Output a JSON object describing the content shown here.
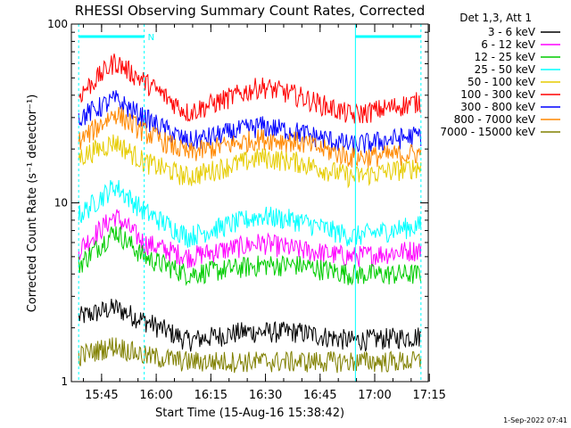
{
  "chart_data": {
    "type": "line",
    "title": "RHESSI Observing Summary Count Rates, Corrected",
    "xlabel": "Start Time (15-Aug-16 15:38:42)",
    "ylabel": "Corrected Count Rate (s⁻¹ detector⁻¹)",
    "ylog": true,
    "ylim": [
      1,
      100
    ],
    "y_tick_labels": [
      "1",
      "10",
      "100"
    ],
    "x_minutes_range": [
      -2,
      96
    ],
    "x_tick_labels": [
      "15:45",
      "16:00",
      "16:15",
      "16:30",
      "16:45",
      "17:00",
      "17:15"
    ],
    "x_tick_minutes": [
      6.3,
      21.3,
      36.3,
      51.3,
      66.3,
      81.3,
      96.3
    ],
    "legend_header": "Det 1,3, Att 1",
    "legend_position": "top-right, outside plot",
    "footer_date": "1-Sep-2022 07:41",
    "bar_flag": "N",
    "bars": [
      {
        "name": "night_left",
        "start_min": 0,
        "end_min": 18
      },
      {
        "name": "night_right",
        "start_min": 76,
        "end_min": 94
      }
    ],
    "series": [
      {
        "name": "3 - 6 keV",
        "color": "#000000",
        "points": [
          [
            0,
            2.3
          ],
          [
            10,
            2.6
          ],
          [
            18,
            2.2
          ],
          [
            30,
            1.7
          ],
          [
            45,
            1.9
          ],
          [
            60,
            1.9
          ],
          [
            75,
            1.7
          ],
          [
            94,
            1.8
          ]
        ]
      },
      {
        "name": "6 - 12 keV",
        "color": "#ff00ff",
        "points": [
          [
            0,
            5.5
          ],
          [
            10,
            8.5
          ],
          [
            18,
            6.0
          ],
          [
            30,
            5.0
          ],
          [
            50,
            6.0
          ],
          [
            60,
            5.5
          ],
          [
            75,
            5.0
          ],
          [
            94,
            5.5
          ]
        ]
      },
      {
        "name": "12 - 25 keV",
        "color": "#00cc00",
        "points": [
          [
            0,
            4.5
          ],
          [
            10,
            7.0
          ],
          [
            18,
            5.0
          ],
          [
            30,
            4.0
          ],
          [
            50,
            4.5
          ],
          [
            60,
            4.5
          ],
          [
            75,
            4.0
          ],
          [
            94,
            4.0
          ]
        ]
      },
      {
        "name": "25 - 50 keV",
        "color": "#00ffff",
        "points": [
          [
            0,
            8.5
          ],
          [
            10,
            12.5
          ],
          [
            18,
            9.0
          ],
          [
            30,
            6.5
          ],
          [
            50,
            8.5
          ],
          [
            60,
            8.0
          ],
          [
            75,
            6.5
          ],
          [
            94,
            7.5
          ]
        ]
      },
      {
        "name": "50 - 100 keV",
        "color": "#e6cc00",
        "points": [
          [
            0,
            18
          ],
          [
            10,
            22
          ],
          [
            18,
            17
          ],
          [
            30,
            14
          ],
          [
            50,
            18
          ],
          [
            60,
            17
          ],
          [
            75,
            14
          ],
          [
            94,
            16
          ]
        ]
      },
      {
        "name": "100 - 300 keV",
        "color": "#ff0000",
        "points": [
          [
            0,
            40
          ],
          [
            10,
            62
          ],
          [
            18,
            48
          ],
          [
            30,
            32
          ],
          [
            50,
            45
          ],
          [
            60,
            40
          ],
          [
            75,
            31
          ],
          [
            94,
            37
          ]
        ]
      },
      {
        "name": "300 - 800 keV",
        "color": "#0000ff",
        "points": [
          [
            0,
            30
          ],
          [
            10,
            38
          ],
          [
            18,
            30
          ],
          [
            30,
            22
          ],
          [
            50,
            27
          ],
          [
            60,
            25
          ],
          [
            75,
            21
          ],
          [
            94,
            24
          ]
        ]
      },
      {
        "name": "800 - 7000 keV",
        "color": "#ff8800",
        "points": [
          [
            0,
            22
          ],
          [
            10,
            32
          ],
          [
            18,
            25
          ],
          [
            30,
            19
          ],
          [
            50,
            23
          ],
          [
            60,
            22
          ],
          [
            75,
            18
          ],
          [
            94,
            19
          ]
        ]
      },
      {
        "name": "7000 - 15000 keV",
        "color": "#808000",
        "points": [
          [
            0,
            1.4
          ],
          [
            10,
            1.6
          ],
          [
            18,
            1.4
          ],
          [
            30,
            1.3
          ],
          [
            45,
            1.3
          ],
          [
            60,
            1.3
          ],
          [
            75,
            1.3
          ],
          [
            94,
            1.3
          ]
        ]
      }
    ]
  }
}
